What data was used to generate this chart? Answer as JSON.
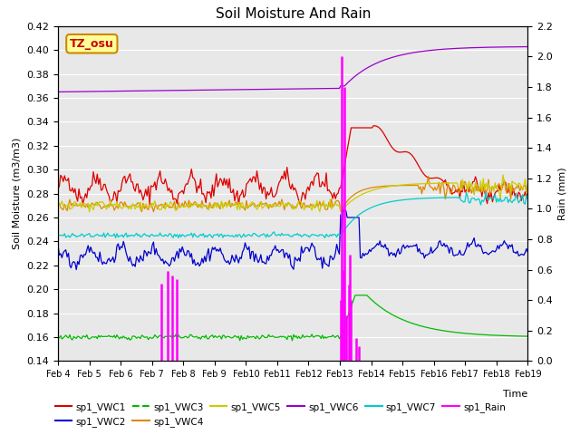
{
  "title": "Soil Moisture And Rain",
  "xlabel": "Time",
  "ylabel_left": "Soil Moisture (m3/m3)",
  "ylabel_right": "Rain (mm)",
  "ylim_left": [
    0.14,
    0.42
  ],
  "ylim_right": [
    0.0,
    2.2
  ],
  "bg_color": "#e8e8e8",
  "colors": {
    "VWC1": "#dd0000",
    "VWC2": "#0000cc",
    "VWC3": "#00bb00",
    "VWC4": "#dd8800",
    "VWC5": "#cccc00",
    "VWC6": "#9900cc",
    "VWC7": "#00cccc",
    "Rain": "#ff00ff"
  },
  "legend_labels": [
    "sp1_VWC1",
    "sp1_VWC2",
    "sp1_VWC3",
    "sp1_VWC4",
    "sp1_VWC5",
    "sp1_VWC6",
    "sp1_VWC7",
    "sp1_Rain"
  ],
  "label_box_text": "TZ_osu",
  "label_box_facecolor": "#ffff99",
  "label_box_edgecolor": "#cc8800",
  "n_points": 360,
  "n_days": 15
}
